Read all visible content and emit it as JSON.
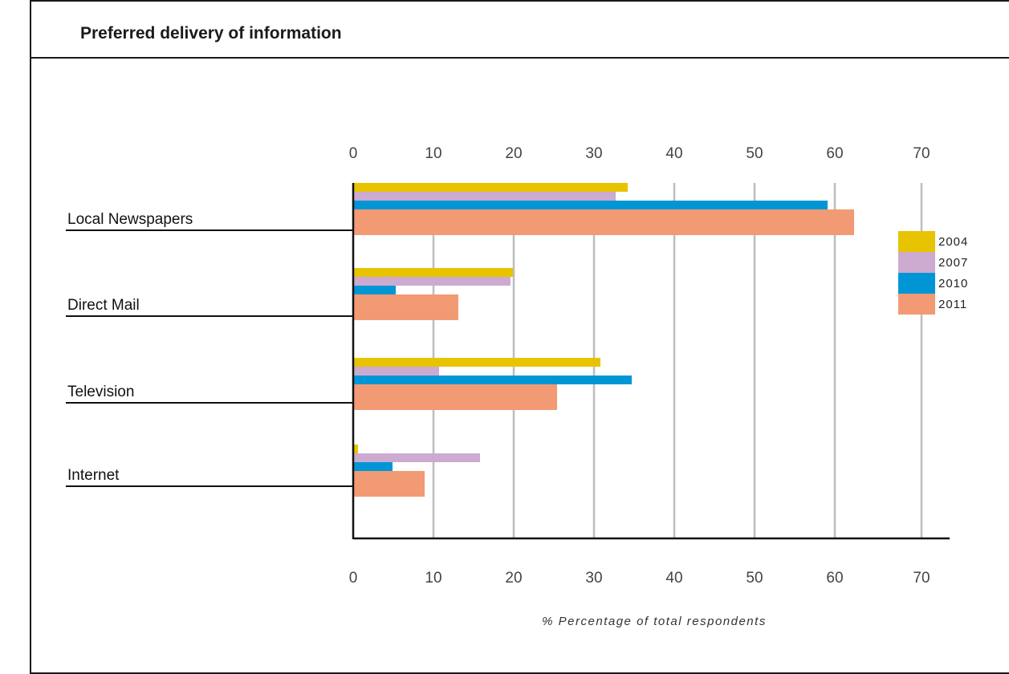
{
  "chart_data": {
    "type": "bar",
    "orientation": "horizontal",
    "title": "Preferred delivery of information",
    "xlabel": "% Percentage of total respondents",
    "ylabel": "",
    "xlim": [
      0,
      70
    ],
    "x_ticks": [
      0,
      10,
      20,
      30,
      40,
      50,
      60,
      70
    ],
    "tick_labels_top_and_bottom": true,
    "grid": true,
    "legend_position": "right",
    "categories": [
      "Local Newspapers",
      "Direct Mail",
      "Television",
      "Internet"
    ],
    "series": [
      {
        "name": "2004",
        "color": "#e8c400",
        "values": [
          34.2,
          19.9,
          30.8,
          0.6
        ]
      },
      {
        "name": "2007",
        "color": "#cdaad0",
        "values": [
          32.7,
          19.6,
          10.7,
          15.8
        ]
      },
      {
        "name": "2010",
        "color": "#0096d6",
        "values": [
          59.1,
          5.3,
          34.7,
          4.9
        ]
      },
      {
        "name": "2011",
        "color": "#f29a74",
        "values": [
          62.4,
          13.1,
          25.4,
          8.9
        ]
      }
    ]
  }
}
